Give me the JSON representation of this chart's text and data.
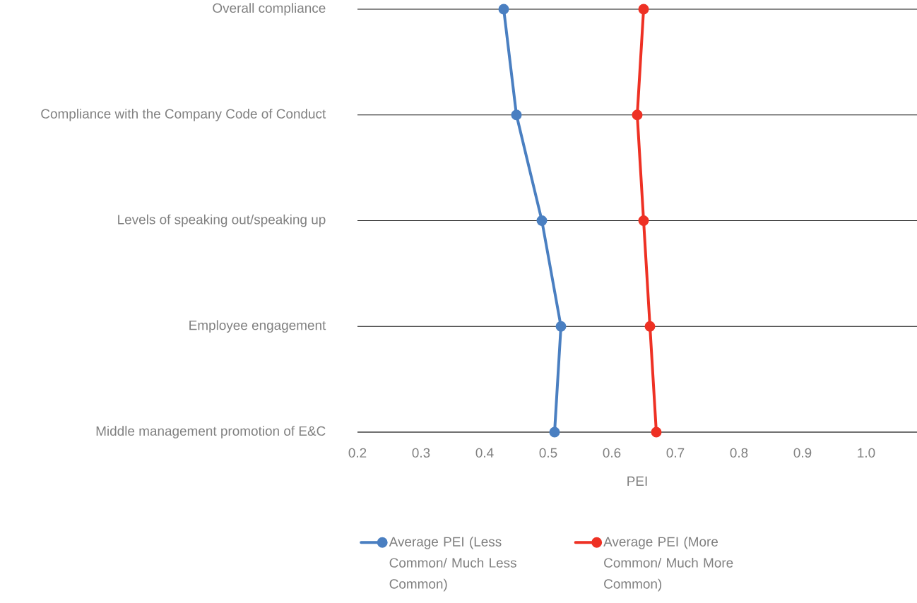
{
  "chart_data": {
    "type": "line",
    "orientation": "horizontal",
    "xlabel": "PEI",
    "categories": [
      "Overall compliance",
      "Compliance with the Company Code of Conduct",
      "Levels of speaking out/speaking up",
      "Employee engagement",
      "Middle management promotion of E&C"
    ],
    "series": [
      {
        "name": "Average PEI (Less Common/ Much Less Common)",
        "color": "#4a7fc1",
        "values": [
          0.43,
          0.45,
          0.49,
          0.52,
          0.51
        ]
      },
      {
        "name": "Average PEI (More Common/ Much More Common)",
        "color": "#ee3124",
        "values": [
          0.65,
          0.64,
          0.65,
          0.66,
          0.67
        ]
      }
    ],
    "xlim": [
      0.2,
      1.08
    ],
    "xticks": [
      0.2,
      0.3,
      0.4,
      0.5,
      0.6,
      0.7,
      0.8,
      0.9,
      {
        "value": 1.0,
        "label": "1.0"
      }
    ],
    "grid": "y",
    "legend": "bottom",
    "marker": "circle",
    "line_style": "solid"
  }
}
